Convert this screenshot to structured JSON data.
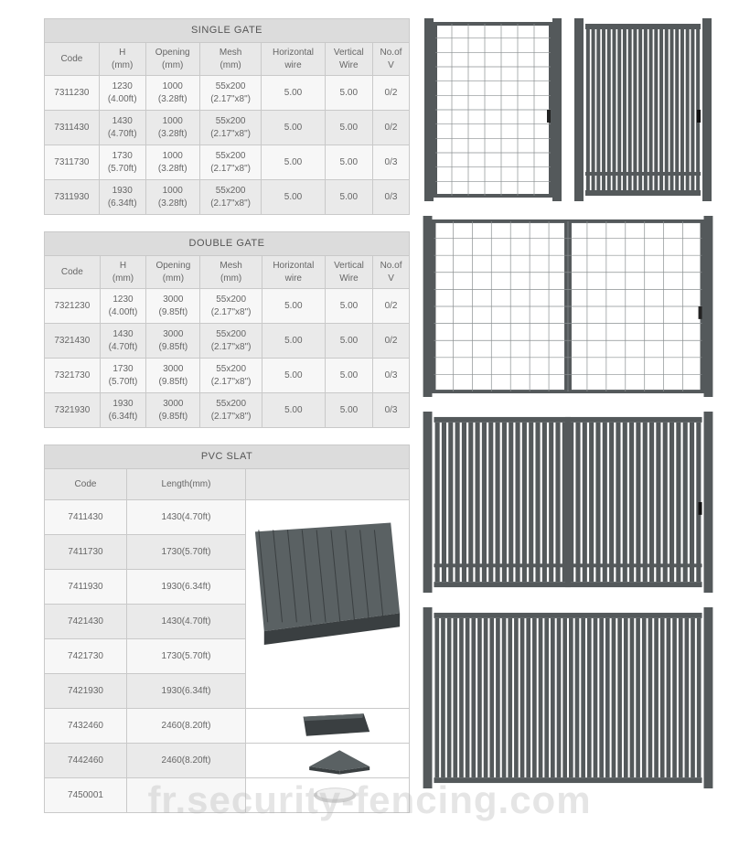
{
  "colors": {
    "table_border": "#c9c9c9",
    "title_bg": "#dcdcdc",
    "header_bg": "#e8e8e8",
    "row_bg": "#f7f7f7",
    "row_alt_bg": "#eaeaea",
    "text": "#666666",
    "gate_fill": "#54595b",
    "gate_wire": "#8a8f91",
    "slat_profile": "#3a3f41",
    "slat_top": "#5a6163"
  },
  "single_gate": {
    "title": "SINGLE GATE",
    "columns": [
      "Code",
      "H\n(mm)",
      "Opening\n(mm)",
      "Mesh\n(mm)",
      "Horizontal\nwire",
      "Vertical\nWire",
      "No.of\nV"
    ],
    "rows": [
      [
        "7311230",
        "1230\n(4.00ft)",
        "1000\n(3.28ft)",
        "55x200\n(2.17\"x8\")",
        "5.00",
        "5.00",
        "0/2"
      ],
      [
        "7311430",
        "1430\n(4.70ft)",
        "1000\n(3.28ft)",
        "55x200\n(2.17\"x8\")",
        "5.00",
        "5.00",
        "0/2"
      ],
      [
        "7311730",
        "1730\n(5.70ft)",
        "1000\n(3.28ft)",
        "55x200\n(2.17\"x8\")",
        "5.00",
        "5.00",
        "0/3"
      ],
      [
        "7311930",
        "1930\n(6.34ft)",
        "1000\n(3.28ft)",
        "55x200\n(2.17\"x8\")",
        "5.00",
        "5.00",
        "0/3"
      ]
    ]
  },
  "double_gate": {
    "title": "DOUBLE GATE",
    "columns": [
      "Code",
      "H\n(mm)",
      "Opening\n(mm)",
      "Mesh\n(mm)",
      "Horizontal\nwire",
      "Vertical\nWire",
      "No.of\nV"
    ],
    "rows": [
      [
        "7321230",
        "1230\n(4.00ft)",
        "3000\n(9.85ft)",
        "55x200\n(2.17\"x8\")",
        "5.00",
        "5.00",
        "0/2"
      ],
      [
        "7321430",
        "1430\n(4.70ft)",
        "3000\n(9.85ft)",
        "55x200\n(2.17\"x8\")",
        "5.00",
        "5.00",
        "0/2"
      ],
      [
        "7321730",
        "1730\n(5.70ft)",
        "3000\n(9.85ft)",
        "55x200\n(2.17\"x8\")",
        "5.00",
        "5.00",
        "0/3"
      ],
      [
        "7321930",
        "1930\n(6.34ft)",
        "3000\n(9.85ft)",
        "55x200\n(2.17\"x8\")",
        "5.00",
        "5.00",
        "0/3"
      ]
    ]
  },
  "pvc_slat": {
    "title": "PVC SLAT",
    "columns": [
      "Code",
      "Length(mm)"
    ],
    "rows": [
      [
        "7411430",
        "1430(4.70ft)"
      ],
      [
        "7411730",
        "1730(5.70ft)"
      ],
      [
        "7411930",
        "1930(6.34ft)"
      ],
      [
        "7421430",
        "1430(4.70ft)"
      ],
      [
        "7421730",
        "1730(5.70ft)"
      ],
      [
        "7421930",
        "1930(6.34ft)"
      ],
      [
        "7432460",
        "2460(8.20ft)"
      ],
      [
        "7442460",
        "2460(8.20ft)"
      ],
      [
        "7450001",
        ""
      ]
    ],
    "image_groups": [
      {
        "rowspan": 6,
        "type": "slat-board"
      },
      {
        "rowspan": 1,
        "type": "slat-end"
      },
      {
        "rowspan": 1,
        "type": "angle-profile"
      },
      {
        "rowspan": 1,
        "type": "clip"
      }
    ]
  },
  "watermark": "fr.security-fencing.com",
  "illustrations": {
    "single_mesh": {
      "type": "mesh-single",
      "posts": 2,
      "hlines": 12,
      "vlines": 7
    },
    "single_slat": {
      "type": "slat-single",
      "posts": 2,
      "slats": 22
    },
    "double_mesh": {
      "type": "mesh-double",
      "posts": 3,
      "hlines": 10,
      "vlines": 14
    },
    "double_slat": {
      "type": "slat-double",
      "posts": 3,
      "slats": 40
    },
    "panel_slat": {
      "type": "slat-panel",
      "posts": 2,
      "slats": 44
    }
  }
}
